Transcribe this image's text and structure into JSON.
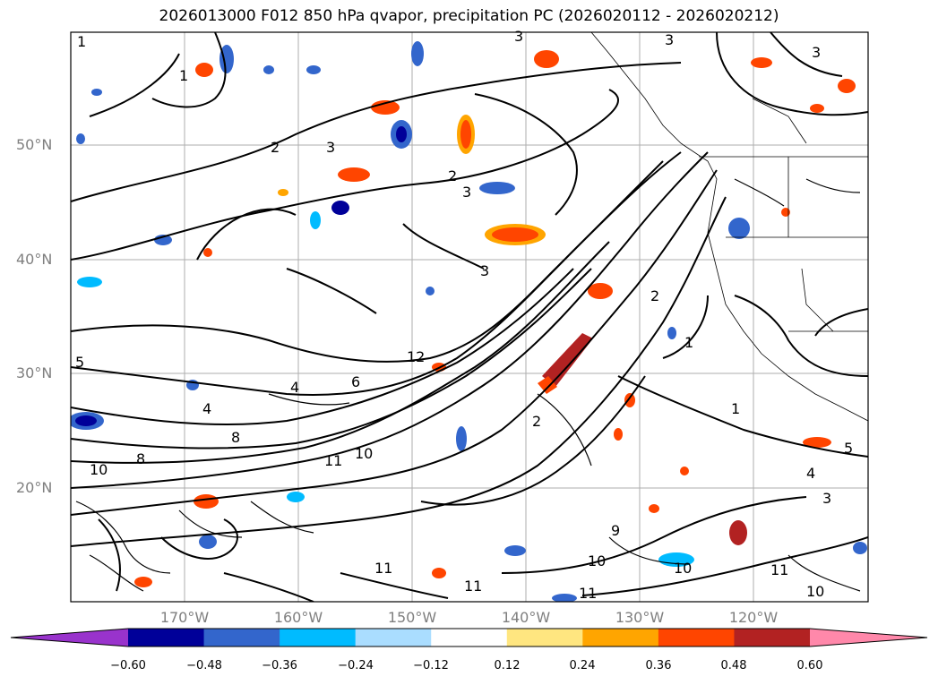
{
  "title": "2026013000 F012 850 hPa qvapor, precipitation PC (2026020112 - 2026020212)",
  "map": {
    "lat_labels": [
      "50°N",
      "40°N",
      "30°N",
      "20°N"
    ],
    "lon_labels": [
      "170°W",
      "160°W",
      "150°W",
      "140°W",
      "130°W",
      "120°W"
    ],
    "grid_color": "#8c8c8c",
    "contour_labels": [
      "1",
      "2",
      "3",
      "4",
      "5",
      "6",
      "8",
      "9",
      "10",
      "11",
      "12"
    ]
  },
  "colorbar": {
    "ticks": [
      "−0.60",
      "−0.48",
      "−0.36",
      "−0.24",
      "−0.12",
      "0.12",
      "0.24",
      "0.36",
      "0.48",
      "0.60"
    ],
    "colors": [
      "#9933cc",
      "#000099",
      "#3366cc",
      "#00bbff",
      "#aaddff",
      "#ffffff",
      "#ffe680",
      "#ffa500",
      "#ff4500",
      "#b22222",
      "#ff88aa"
    ]
  }
}
